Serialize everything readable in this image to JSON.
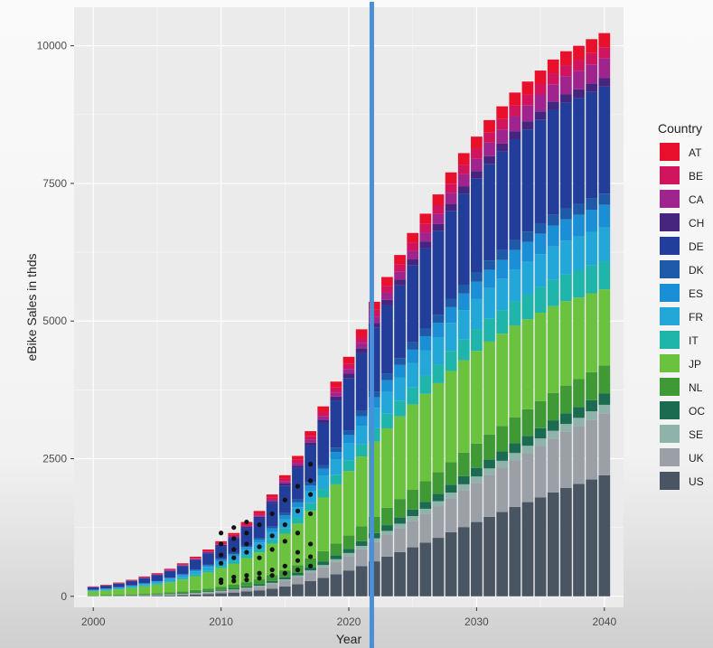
{
  "chart_data": {
    "type": "bar",
    "stacked": true,
    "xlabel": "Year",
    "ylabel": "eBike Sales in thds",
    "x_ticks": [
      "2000",
      "2010",
      "2020",
      "2030",
      "2040"
    ],
    "y_ticks": [
      "0",
      "2500",
      "5000",
      "7500",
      "10000"
    ],
    "xlim": [
      1998.5,
      2041.5
    ],
    "ylim": [
      -200,
      10700
    ],
    "grid": true,
    "legend_title": "Country",
    "legend_position": "right",
    "marker_line_year": 2021.8,
    "categories": [
      2000,
      2001,
      2002,
      2003,
      2004,
      2005,
      2006,
      2007,
      2008,
      2009,
      2010,
      2011,
      2012,
      2013,
      2014,
      2015,
      2016,
      2017,
      2018,
      2019,
      2020,
      2021,
      2022,
      2023,
      2024,
      2025,
      2026,
      2027,
      2028,
      2029,
      2030,
      2031,
      2032,
      2033,
      2034,
      2035,
      2036,
      2037,
      2038,
      2039,
      2040
    ],
    "totals": [
      180,
      210,
      250,
      300,
      360,
      420,
      500,
      600,
      720,
      850,
      1000,
      1150,
      1350,
      1550,
      1850,
      2200,
      2550,
      3000,
      3450,
      3900,
      4350,
      4850,
      5350,
      5800,
      6200,
      6600,
      6950,
      7300,
      7700,
      8050,
      8350,
      8650,
      8900,
      9150,
      9350,
      9550,
      9750,
      9900,
      10000,
      10120,
      10230
    ],
    "series": [
      {
        "name": "US",
        "color": "#4a5563",
        "share_start": 0.0,
        "share_end": 0.215
      },
      {
        "name": "UK",
        "color": "#9aa0a6",
        "share_start": 0.01,
        "share_end": 0.11
      },
      {
        "name": "SE",
        "color": "#8fb3ab",
        "share_start": 0.01,
        "share_end": 0.015
      },
      {
        "name": "OC",
        "color": "#1b6b50",
        "share_start": 0.015,
        "share_end": 0.02
      },
      {
        "name": "NL",
        "color": "#3f9a35",
        "share_start": 0.06,
        "share_end": 0.05
      },
      {
        "name": "JP",
        "color": "#6ac23f",
        "share_start": 0.4,
        "share_end": 0.135
      },
      {
        "name": "IT",
        "color": "#1fb5aa",
        "share_start": 0.04,
        "share_end": 0.05
      },
      {
        "name": "FR",
        "color": "#22a7d8",
        "share_start": 0.08,
        "share_end": 0.06
      },
      {
        "name": "ES",
        "color": "#1a8fd6",
        "share_start": 0.03,
        "share_end": 0.04
      },
      {
        "name": "DK",
        "color": "#1e5aa8",
        "share_start": 0.02,
        "share_end": 0.02
      },
      {
        "name": "DE",
        "color": "#233d9a",
        "share_start": 0.245,
        "share_end": 0.19
      },
      {
        "name": "CH",
        "color": "#46257f",
        "share_start": 0.02,
        "share_end": 0.015
      },
      {
        "name": "CA",
        "color": "#a0248e",
        "share_start": 0.005,
        "share_end": 0.035
      },
      {
        "name": "BE",
        "color": "#d0145e",
        "share_start": 0.025,
        "share_end": 0.02
      },
      {
        "name": "AT",
        "color": "#e8102a",
        "share_start": 0.03,
        "share_end": 0.025
      }
    ],
    "legend_order": [
      "AT",
      "BE",
      "CA",
      "CH",
      "DE",
      "DK",
      "ES",
      "FR",
      "IT",
      "JP",
      "NL",
      "OC",
      "SE",
      "UK",
      "US"
    ],
    "observed_points": [
      {
        "x": 2010,
        "y": [
          950,
          1150,
          750,
          600,
          300,
          250
        ]
      },
      {
        "x": 2011,
        "y": [
          1050,
          1250,
          850,
          700,
          350,
          280
        ]
      },
      {
        "x": 2012,
        "y": [
          1150,
          1350,
          950,
          800,
          380,
          300
        ]
      },
      {
        "x": 2013,
        "y": [
          1300,
          900,
          700,
          420,
          330
        ]
      },
      {
        "x": 2014,
        "y": [
          1500,
          1100,
          850,
          480,
          380
        ]
      },
      {
        "x": 2015,
        "y": [
          1750,
          1300,
          1000,
          550,
          420
        ]
      },
      {
        "x": 2016,
        "y": [
          2000,
          1550,
          1150,
          800,
          650,
          480
        ]
      },
      {
        "x": 2017,
        "y": [
          2400,
          2100,
          1850,
          1500,
          950,
          720,
          550
        ]
      }
    ]
  }
}
